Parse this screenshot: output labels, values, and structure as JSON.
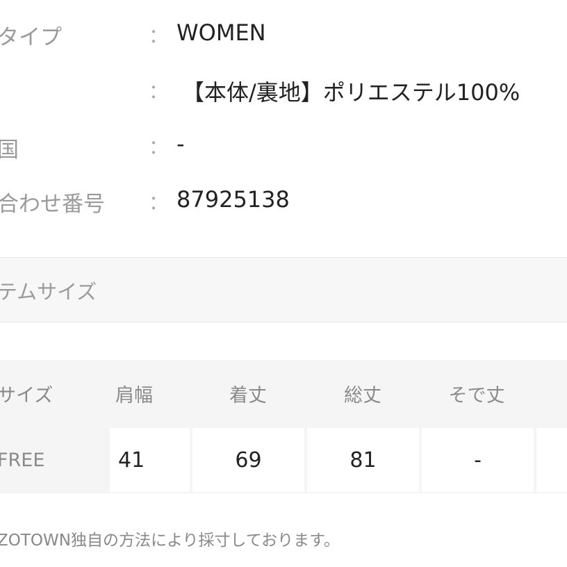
{
  "details": [
    {
      "label": "タイプ",
      "value": "WOMEN"
    },
    {
      "label": "",
      "value": "【本体/裏地】ポリエステル100%"
    },
    {
      "label": "国",
      "value": "-"
    },
    {
      "label": "合わせ番号",
      "value": "87925138"
    }
  ],
  "colon": "：",
  "section_title": "テムサイズ",
  "size_table": {
    "headers": [
      "サイズ",
      "肩幅",
      "着丈",
      "総丈",
      "そで丈"
    ],
    "rows": [
      {
        "size": "FREE",
        "values": [
          "41",
          "69",
          "81",
          "-"
        ]
      }
    ]
  },
  "footnote": "ZOTOWN独自の方法により採寸しております。"
}
